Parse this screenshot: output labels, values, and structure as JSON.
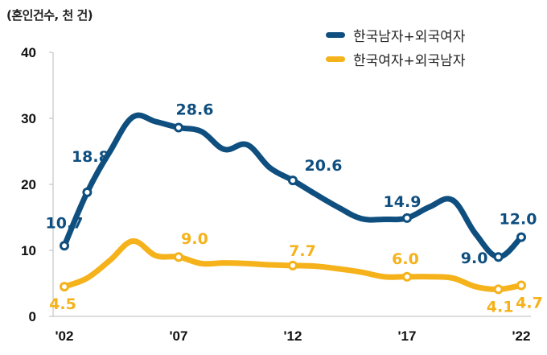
{
  "chart_data": {
    "type": "line",
    "title": "",
    "unit_label": "(혼인건수, 천 건)",
    "xlabel": "",
    "ylabel": "",
    "ylim": [
      0,
      40
    ],
    "yticks": [
      0,
      10,
      20,
      30,
      40
    ],
    "xlim": [
      2002,
      2022
    ],
    "xticks": [
      {
        "year": 2002,
        "label": "'02"
      },
      {
        "year": 2007,
        "label": "'07"
      },
      {
        "year": 2012,
        "label": "'12"
      },
      {
        "year": 2017,
        "label": "'17"
      },
      {
        "year": 2022,
        "label": "'22"
      }
    ],
    "grid": false,
    "legend_position": "top-right",
    "x": [
      2002,
      2003,
      2004,
      2005,
      2006,
      2007,
      2008,
      2009,
      2010,
      2011,
      2012,
      2013,
      2014,
      2015,
      2016,
      2017,
      2018,
      2019,
      2020,
      2021,
      2022
    ],
    "series": [
      {
        "name": "한국남자+외국여자",
        "color": "#0f4f7f",
        "values": [
          10.7,
          18.8,
          25.0,
          30.2,
          29.5,
          28.6,
          28.0,
          25.3,
          26.0,
          22.5,
          20.6,
          18.5,
          16.5,
          14.8,
          14.7,
          14.9,
          16.6,
          17.6,
          12.5,
          9.0,
          12.0
        ],
        "markers": [
          {
            "year": 2002,
            "value": 10.7,
            "label": "10.7"
          },
          {
            "year": 2003,
            "value": 18.8,
            "label": "18.8"
          },
          {
            "year": 2007,
            "value": 28.6,
            "label": "28.6"
          },
          {
            "year": 2012,
            "value": 20.6,
            "label": "20.6"
          },
          {
            "year": 2017,
            "value": 14.9,
            "label": "14.9"
          },
          {
            "year": 2021,
            "value": 9.0,
            "label": "9.0"
          },
          {
            "year": 2022,
            "value": 12.0,
            "label": "12.0"
          }
        ]
      },
      {
        "name": "한국여자+외국남자",
        "color": "#f5b21b",
        "values": [
          4.5,
          5.8,
          8.5,
          11.4,
          9.2,
          9.0,
          8.0,
          8.1,
          8.0,
          7.8,
          7.7,
          7.6,
          7.2,
          6.7,
          6.0,
          6.0,
          6.0,
          5.8,
          4.5,
          4.1,
          4.7
        ],
        "markers": [
          {
            "year": 2002,
            "value": 4.5,
            "label": "4.5"
          },
          {
            "year": 2007,
            "value": 9.0,
            "label": "9.0"
          },
          {
            "year": 2012,
            "value": 7.7,
            "label": "7.7"
          },
          {
            "year": 2017,
            "value": 6.0,
            "label": "6.0"
          },
          {
            "year": 2021,
            "value": 4.1,
            "label": "4.1"
          },
          {
            "year": 2022,
            "value": 4.7,
            "label": "4.7"
          }
        ]
      }
    ]
  },
  "legend": {
    "items": [
      {
        "label": "한국남자+외국여자",
        "color": "#0f4f7f"
      },
      {
        "label": "한국여자+외국남자",
        "color": "#f5b21b"
      }
    ]
  }
}
